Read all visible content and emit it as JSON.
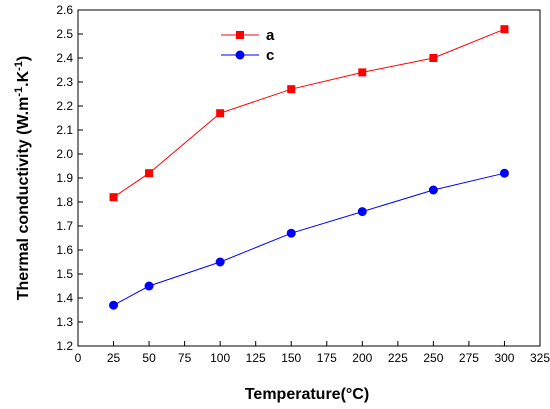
{
  "chart_data": {
    "type": "line",
    "xlabel": "Temperature(°C)",
    "ylabel": "Thermal conductivity (W.m",
    "ylabel_sup1": "-1",
    "ylabel_mid": ".K",
    "ylabel_sup2": "-1",
    "ylabel_end": ")",
    "xlim": [
      0,
      325
    ],
    "ylim": [
      1.2,
      2.6
    ],
    "x_ticks": [
      "0",
      "25",
      "50",
      "75",
      "100",
      "125",
      "150",
      "175",
      "200",
      "225",
      "250",
      "275",
      "300",
      "325"
    ],
    "y_ticks": [
      "1.2",
      "1.3",
      "1.4",
      "1.5",
      "1.6",
      "1.7",
      "1.8",
      "1.9",
      "2.0",
      "2.1",
      "2.2",
      "2.3",
      "2.4",
      "2.5",
      "2.6"
    ],
    "legend_position": "top-center",
    "grid": false,
    "series": [
      {
        "name": "a",
        "color": "#ff0000",
        "marker": "square",
        "x": [
          25,
          50,
          100,
          150,
          200,
          250,
          300
        ],
        "y": [
          1.82,
          1.92,
          2.17,
          2.27,
          2.34,
          2.4,
          2.52
        ]
      },
      {
        "name": "c",
        "color": "#0000ff",
        "marker": "circle",
        "x": [
          25,
          50,
          100,
          150,
          200,
          250,
          300
        ],
        "y": [
          1.37,
          1.45,
          1.55,
          1.67,
          1.76,
          1.85,
          1.92
        ]
      }
    ]
  }
}
